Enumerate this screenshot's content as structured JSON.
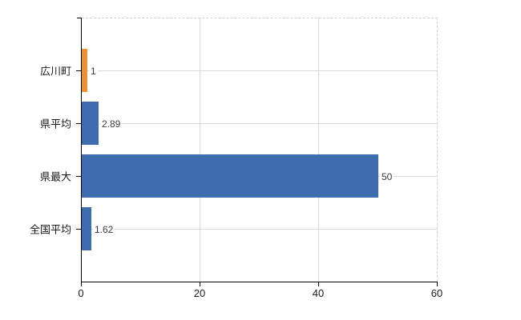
{
  "chart_data": {
    "type": "bar",
    "orientation": "horizontal",
    "categories": [
      "広川町",
      "県平均",
      "県最大",
      "全国平均"
    ],
    "values": [
      1,
      2.89,
      50,
      1.62
    ],
    "value_labels": [
      "1",
      "2.89",
      "50",
      "1.62"
    ],
    "bar_colors": [
      "#ea9336",
      "#3d6dae",
      "#3d6dae",
      "#3d6dae"
    ],
    "xlim": [
      0,
      60
    ],
    "xticks": [
      0,
      20,
      40,
      60
    ],
    "xtick_labels": [
      "0",
      "20",
      "40",
      "60"
    ],
    "grid": true,
    "legend": "none",
    "title": ""
  },
  "colors": {
    "axis": "#000000",
    "grid": "#d9d9d9",
    "frame_dashed": "#cfcfcf",
    "label_text": "#1a1a1a",
    "value_text": "#3a3a3a",
    "background": "#ffffff"
  }
}
